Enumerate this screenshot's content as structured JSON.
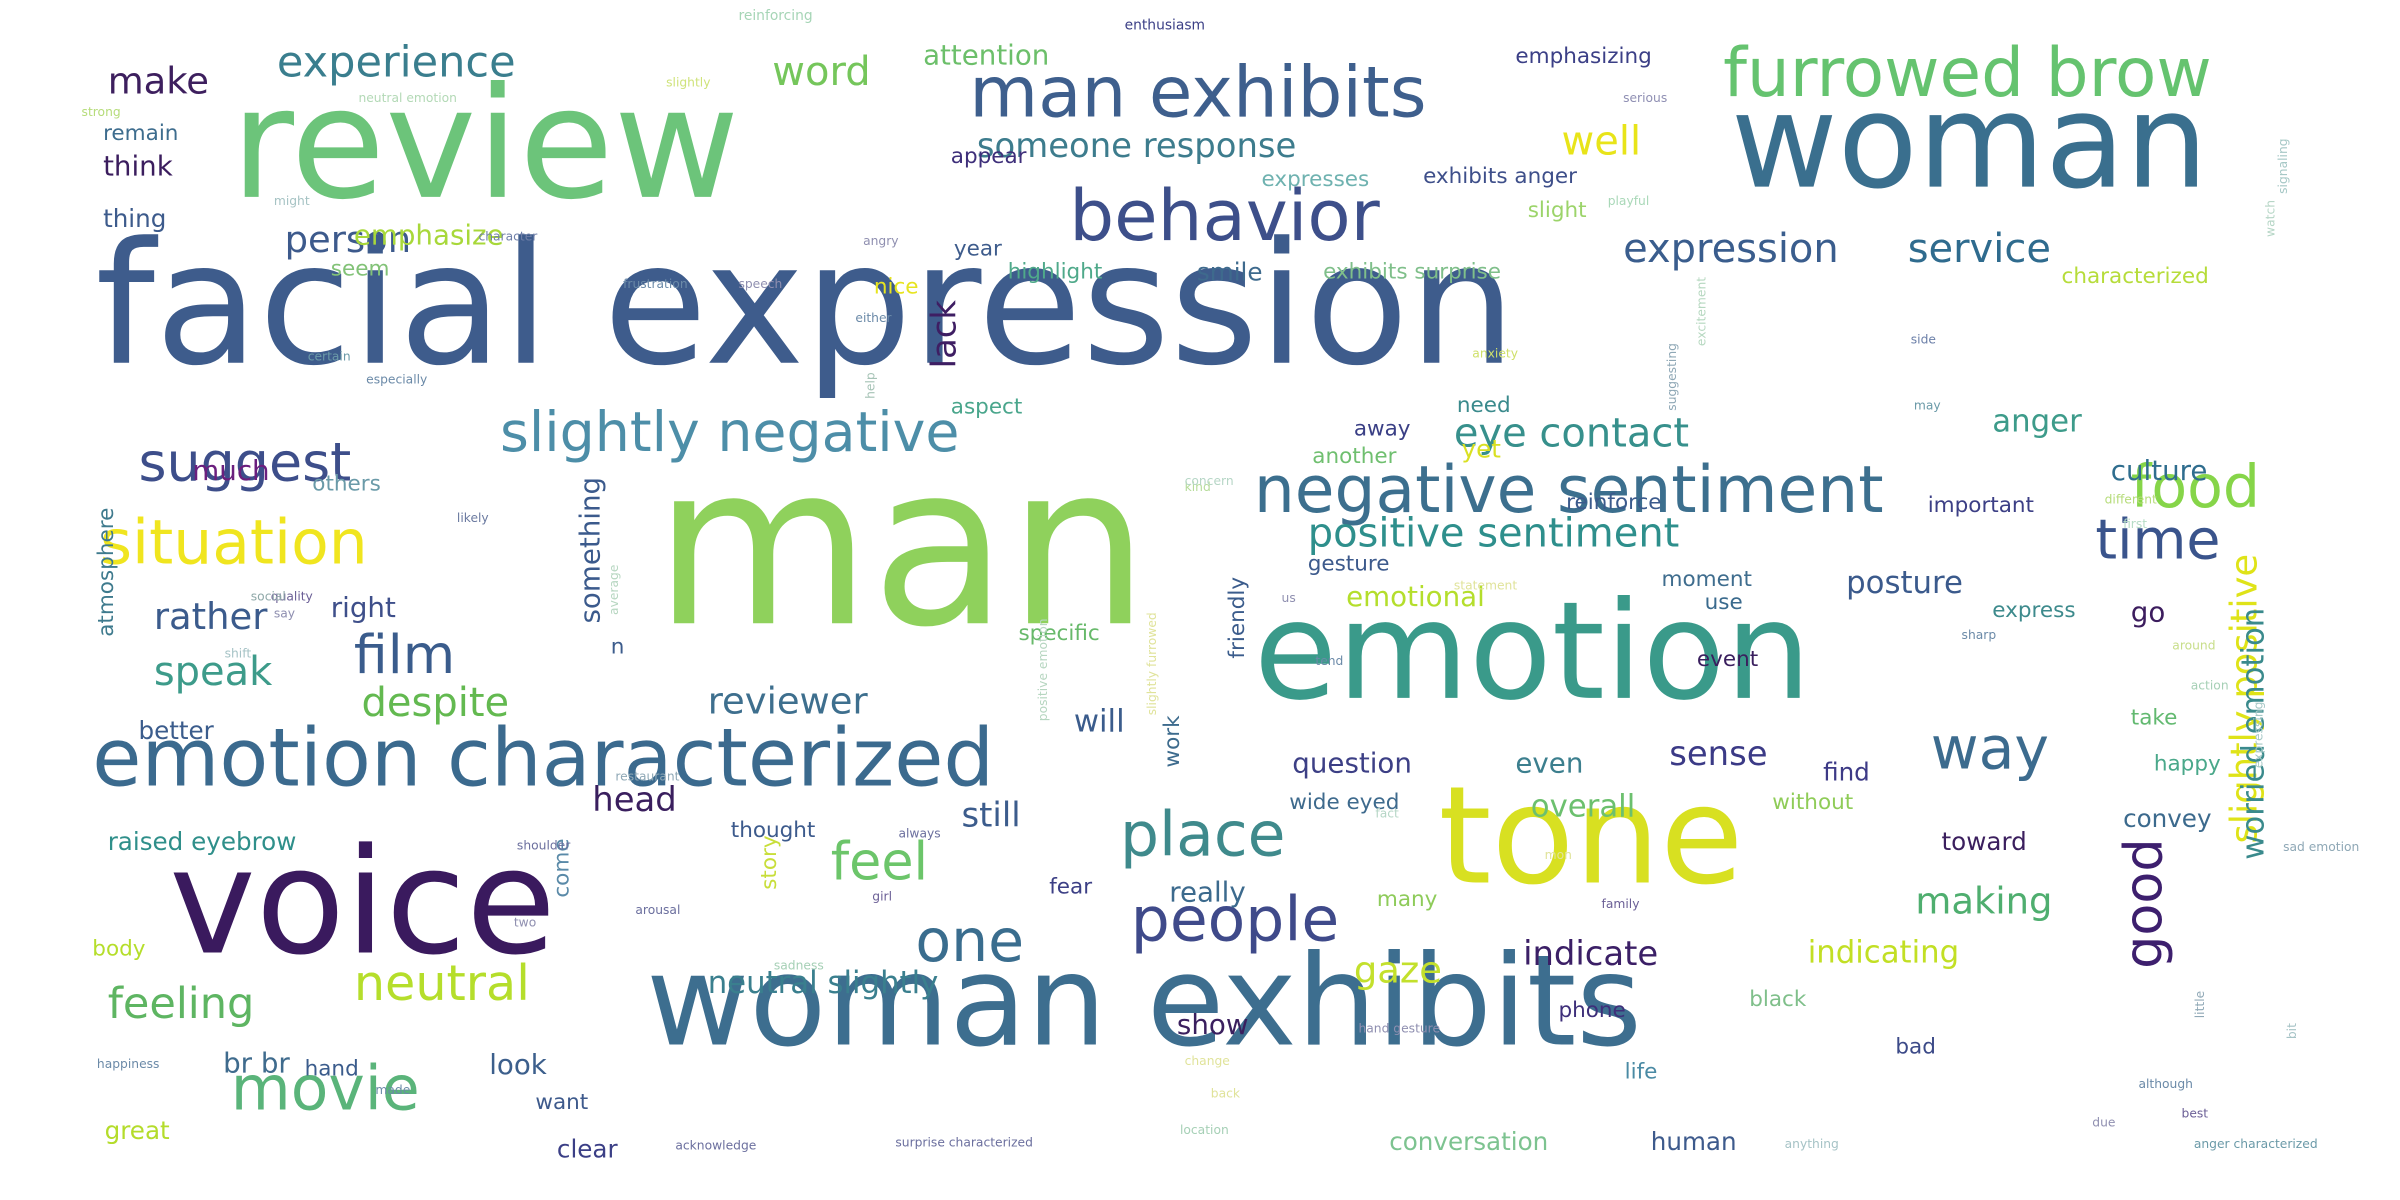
{
  "words": [
    {
      "text": "man",
      "color": "#8fd15c",
      "orientation": "horizontal"
    },
    {
      "text": "facial expression",
      "color": "#3e5c8c",
      "orientation": "horizontal"
    },
    {
      "text": "review",
      "color": "#6cc47a",
      "orientation": "horizontal"
    },
    {
      "text": "woman",
      "color": "#3a6f8e",
      "orientation": "horizontal"
    },
    {
      "text": "voice",
      "color": "#3a1a5e",
      "orientation": "horizontal"
    },
    {
      "text": "emotion",
      "color": "#3a9a8a",
      "orientation": "horizontal"
    },
    {
      "text": "tone",
      "color": "#d8e021",
      "orientation": "horizontal"
    },
    {
      "text": "woman exhibits",
      "color": "#3d6e8f",
      "orientation": "horizontal"
    },
    {
      "text": "emotion characterized",
      "color": "#3b6a8e",
      "orientation": "horizontal"
    },
    {
      "text": "man exhibits",
      "color": "#3e5f8d",
      "orientation": "horizontal"
    },
    {
      "text": "behavior",
      "color": "#3d4f8a",
      "orientation": "horizontal"
    },
    {
      "text": "furrowed brow",
      "color": "#65c36f",
      "orientation": "horizontal"
    },
    {
      "text": "negative sentiment",
      "color": "#3c6f8e",
      "orientation": "horizontal"
    },
    {
      "text": "people",
      "color": "#3f4a8a",
      "orientation": "horizontal"
    },
    {
      "text": "situation",
      "color": "#f0e51f",
      "orientation": "horizontal"
    },
    {
      "text": "slightly negative",
      "color": "#4d8ea8",
      "orientation": "horizontal"
    },
    {
      "text": "food",
      "color": "#86d549",
      "orientation": "horizontal"
    },
    {
      "text": "suggest",
      "color": "#3d4e8a",
      "orientation": "horizontal"
    },
    {
      "text": "film",
      "color": "#3a5c8c",
      "orientation": "horizontal"
    },
    {
      "text": "good",
      "color": "#3d1f6e",
      "orientation": "vertical"
    },
    {
      "text": "way",
      "color": "#3c6b8e",
      "orientation": "horizontal"
    },
    {
      "text": "place",
      "color": "#3f8a8c",
      "orientation": "horizontal"
    },
    {
      "text": "movie",
      "color": "#5ab47a",
      "orientation": "horizontal"
    },
    {
      "text": "one",
      "color": "#3a6d8e",
      "orientation": "horizontal"
    },
    {
      "text": "feel",
      "color": "#6cc56a",
      "orientation": "horizontal"
    },
    {
      "text": "neutral",
      "color": "#b5de2b",
      "orientation": "horizontal"
    },
    {
      "text": "time",
      "color": "#3a548c",
      "orientation": "horizontal"
    },
    {
      "text": "positive sentiment",
      "color": "#2e8f8c",
      "orientation": "horizontal"
    },
    {
      "text": "expression",
      "color": "#3a5d8d",
      "orientation": "horizontal"
    },
    {
      "text": "service",
      "color": "#2f6b8e",
      "orientation": "horizontal"
    },
    {
      "text": "experience",
      "color": "#3a7e8e",
      "orientation": "horizontal"
    },
    {
      "text": "someone response",
      "color": "#3d7c8d",
      "orientation": "horizontal"
    },
    {
      "text": "eye contact",
      "color": "#37908c",
      "orientation": "horizontal"
    },
    {
      "text": "slightly positive",
      "color": "#dfe318",
      "orientation": "vertical"
    },
    {
      "text": "feeling",
      "color": "#5eb562",
      "orientation": "horizontal"
    },
    {
      "text": "making",
      "color": "#4fae6f",
      "orientation": "horizontal"
    },
    {
      "text": "speak",
      "color": "#3d9b8a",
      "orientation": "horizontal"
    },
    {
      "text": "despite",
      "color": "#63b950",
      "orientation": "horizontal"
    },
    {
      "text": "reviewer",
      "color": "#3e6f8e",
      "orientation": "horizontal"
    },
    {
      "text": "sense",
      "color": "#3b3a86",
      "orientation": "horizontal"
    },
    {
      "text": "person",
      "color": "#3d5a8c",
      "orientation": "horizontal"
    },
    {
      "text": "word",
      "color": "#75c65b",
      "orientation": "horizontal"
    },
    {
      "text": "make",
      "color": "#3d1f5e",
      "orientation": "horizontal"
    },
    {
      "text": "rather",
      "color": "#3b5b8c",
      "orientation": "horizontal"
    },
    {
      "text": "indicate",
      "color": "#3b1f66",
      "orientation": "horizontal"
    },
    {
      "text": "gaze",
      "color": "#c3e02c",
      "orientation": "horizontal"
    },
    {
      "text": "well",
      "color": "#e8e419",
      "orientation": "horizontal"
    },
    {
      "text": "lack",
      "color": "#3e1e63",
      "orientation": "vertical"
    },
    {
      "text": "still",
      "color": "#3c5c8c",
      "orientation": "horizontal"
    },
    {
      "text": "head",
      "color": "#3a1f5e",
      "orientation": "horizontal"
    },
    {
      "text": "neutral slightly",
      "color": "#3a7f8e",
      "orientation": "horizontal"
    },
    {
      "text": "indicating",
      "color": "#c2df24",
      "orientation": "horizontal"
    },
    {
      "text": "worried emotion",
      "color": "#3a8a8c",
      "orientation": "vertical"
    },
    {
      "text": "posture",
      "color": "#3b5a8c",
      "orientation": "horizontal"
    },
    {
      "text": "emotional",
      "color": "#b4de2c",
      "orientation": "horizontal"
    },
    {
      "text": "anger",
      "color": "#3d9b8a",
      "orientation": "horizontal"
    },
    {
      "text": "culture",
      "color": "#2f6d8e",
      "orientation": "horizontal"
    },
    {
      "text": "attention",
      "color": "#6cbf6a",
      "orientation": "horizontal"
    },
    {
      "text": "emphasizing",
      "color": "#3b3f86",
      "orientation": "horizontal"
    },
    {
      "text": "think",
      "color": "#3b1d5e",
      "orientation": "horizontal"
    },
    {
      "text": "thing",
      "color": "#3d5b8c",
      "orientation": "horizontal"
    },
    {
      "text": "remain",
      "color": "#3e6d8e",
      "orientation": "horizontal"
    },
    {
      "text": "appear",
      "color": "#3e2f7a",
      "orientation": "horizontal"
    },
    {
      "text": "expresses",
      "color": "#6fb2b0",
      "orientation": "horizontal"
    },
    {
      "text": "exhibits anger",
      "color": "#3e4f8a",
      "orientation": "horizontal"
    },
    {
      "text": "slight",
      "color": "#9cd46a",
      "orientation": "horizontal"
    },
    {
      "text": "emphasize",
      "color": "#a8d83a",
      "orientation": "horizontal"
    },
    {
      "text": "year",
      "color": "#3e5c8c",
      "orientation": "horizontal"
    },
    {
      "text": "smile",
      "color": "#3e6a8d",
      "orientation": "horizontal"
    },
    {
      "text": "highlight",
      "color": "#4fa98a",
      "orientation": "horizontal"
    },
    {
      "text": "exhibits surprise",
      "color": "#7fbf8a",
      "orientation": "horizontal"
    },
    {
      "text": "characterized",
      "color": "#b6dc3a",
      "orientation": "horizontal"
    },
    {
      "text": "nice",
      "color": "#e7e41f",
      "orientation": "horizontal"
    },
    {
      "text": "seem",
      "color": "#82c277",
      "orientation": "horizontal"
    },
    {
      "text": "much",
      "color": "#6b1f7e",
      "orientation": "horizontal"
    },
    {
      "text": "aspect",
      "color": "#4aa68c",
      "orientation": "horizontal"
    },
    {
      "text": "need",
      "color": "#3a8a8c",
      "orientation": "horizontal"
    },
    {
      "text": "yet",
      "color": "#d9e022",
      "orientation": "horizontal"
    },
    {
      "text": "away",
      "color": "#3a3f85",
      "orientation": "horizontal"
    },
    {
      "text": "another",
      "color": "#6fbf6f",
      "orientation": "horizontal"
    },
    {
      "text": "reinforce",
      "color": "#3b5a8c",
      "orientation": "horizontal"
    },
    {
      "text": "important",
      "color": "#3c3f85",
      "orientation": "horizontal"
    },
    {
      "text": "right",
      "color": "#3e4f8a",
      "orientation": "horizontal"
    },
    {
      "text": "something",
      "color": "#3b5a8c",
      "orientation": "vertical"
    },
    {
      "text": "better",
      "color": "#3b5c8c",
      "orientation": "horizontal"
    },
    {
      "text": "will",
      "color": "#3b5c8c",
      "orientation": "horizontal"
    },
    {
      "text": "question",
      "color": "#3c3f85",
      "orientation": "horizontal"
    },
    {
      "text": "even",
      "color": "#3c7f8e",
      "orientation": "horizontal"
    },
    {
      "text": "overall",
      "color": "#6cc06e",
      "orientation": "horizontal"
    },
    {
      "text": "find",
      "color": "#3d3a86",
      "orientation": "horizontal"
    },
    {
      "text": "event",
      "color": "#3a1f5e",
      "orientation": "horizontal"
    },
    {
      "text": "moment",
      "color": "#3f6d8e",
      "orientation": "horizontal"
    },
    {
      "text": "use",
      "color": "#3a6a8d",
      "orientation": "horizontal"
    },
    {
      "text": "express",
      "color": "#3d8a8c",
      "orientation": "horizontal"
    },
    {
      "text": "go",
      "color": "#3c1d5e",
      "orientation": "horizontal"
    },
    {
      "text": "take",
      "color": "#62b970",
      "orientation": "horizontal"
    },
    {
      "text": "happy",
      "color": "#4aa88a",
      "orientation": "horizontal"
    },
    {
      "text": "convey",
      "color": "#3c6a8d",
      "orientation": "horizontal"
    },
    {
      "text": "toward",
      "color": "#3b1f5e",
      "orientation": "horizontal"
    },
    {
      "text": "without",
      "color": "#8fcc58",
      "orientation": "horizontal"
    },
    {
      "text": "wide eyed",
      "color": "#3e6a8d",
      "orientation": "horizontal"
    },
    {
      "text": "raised eyebrow",
      "color": "#2f8f8a",
      "orientation": "horizontal"
    },
    {
      "text": "thought",
      "color": "#3c5a8c",
      "orientation": "horizontal"
    },
    {
      "text": "br br",
      "color": "#3f6b8d",
      "orientation": "horizontal"
    },
    {
      "text": "hand",
      "color": "#3b5c8c",
      "orientation": "horizontal"
    },
    {
      "text": "look",
      "color": "#3c5f8c",
      "orientation": "horizontal"
    },
    {
      "text": "want",
      "color": "#3e5a8c",
      "orientation": "horizontal"
    },
    {
      "text": "great",
      "color": "#b4dc2b",
      "orientation": "horizontal"
    },
    {
      "text": "clear",
      "color": "#3b3f86",
      "orientation": "horizontal"
    },
    {
      "text": "really",
      "color": "#3c6a8d",
      "orientation": "horizontal"
    },
    {
      "text": "fear",
      "color": "#3c3f85",
      "orientation": "horizontal"
    },
    {
      "text": "many",
      "color": "#8ecb5a",
      "orientation": "horizontal"
    },
    {
      "text": "show",
      "color": "#3a1f5e",
      "orientation": "horizontal"
    },
    {
      "text": "conversation",
      "color": "#7dc390",
      "orientation": "horizontal"
    },
    {
      "text": "human",
      "color": "#3d5a8c",
      "orientation": "horizontal"
    },
    {
      "text": "phone",
      "color": "#3e2f7a",
      "orientation": "horizontal"
    },
    {
      "text": "black",
      "color": "#7fbf8a",
      "orientation": "horizontal"
    },
    {
      "text": "bad",
      "color": "#3c4a88",
      "orientation": "horizontal"
    },
    {
      "text": "life",
      "color": "#4a8aa4",
      "orientation": "horizontal"
    },
    {
      "text": "specific",
      "color": "#67b96a",
      "orientation": "horizontal"
    },
    {
      "text": "gesture",
      "color": "#3d5a8c",
      "orientation": "horizontal"
    },
    {
      "text": "friendly",
      "color": "#3b5c8c",
      "orientation": "vertical"
    },
    {
      "text": "work",
      "color": "#3d6b8d",
      "orientation": "vertical"
    },
    {
      "text": "story",
      "color": "#c8de3a",
      "orientation": "vertical"
    },
    {
      "text": "come",
      "color": "#5a8aa8",
      "orientation": "vertical"
    },
    {
      "text": "body",
      "color": "#b5de2b",
      "orientation": "horizontal"
    },
    {
      "text": "atmosphere",
      "color": "#3e7a8d",
      "orientation": "vertical"
    },
    {
      "text": "others",
      "color": "#6a9aa8",
      "orientation": "horizontal"
    },
    {
      "text": "n",
      "color": "#3c5c8c",
      "orientation": "horizontal"
    },
    {
      "text": "enthusiasm",
      "color": "#3b3f86",
      "orientation": "horizontal"
    },
    {
      "text": "reinforcing",
      "color": "#a6d5b6",
      "orientation": "horizontal"
    },
    {
      "text": "slightly",
      "color": "#cfe37a",
      "orientation": "horizontal"
    },
    {
      "text": "strong",
      "color": "#b6dc7a",
      "orientation": "horizontal"
    },
    {
      "text": "neutral emotion",
      "color": "#b3d9b6",
      "orientation": "horizontal"
    },
    {
      "text": "serious",
      "color": "#8f8fb3",
      "orientation": "horizontal"
    },
    {
      "text": "signaling",
      "color": "#a6c8c6",
      "orientation": "vertical"
    },
    {
      "text": "might",
      "color": "#a6c3c4",
      "orientation": "horizontal"
    },
    {
      "text": "playful",
      "color": "#a9d8b8",
      "orientation": "horizontal"
    },
    {
      "text": "watch",
      "color": "#b6d6c6",
      "orientation": "vertical"
    },
    {
      "text": "character",
      "color": "#6f7fa8",
      "orientation": "horizontal"
    },
    {
      "text": "angry",
      "color": "#8f8fb0",
      "orientation": "horizontal"
    },
    {
      "text": "frustration",
      "color": "#6b8aa8",
      "orientation": "horizontal"
    },
    {
      "text": "speech",
      "color": "#8f8fb0",
      "orientation": "horizontal"
    },
    {
      "text": "either",
      "color": "#6b8aa8",
      "orientation": "horizontal"
    },
    {
      "text": "certain",
      "color": "#6b9aa8",
      "orientation": "horizontal"
    },
    {
      "text": "especially",
      "color": "#6b8aa8",
      "orientation": "horizontal"
    },
    {
      "text": "help",
      "color": "#a6c3b6",
      "orientation": "vertical"
    },
    {
      "text": "anxiety",
      "color": "#cfe06a",
      "orientation": "horizontal"
    },
    {
      "text": "suggesting",
      "color": "#8fa8b6",
      "orientation": "vertical"
    },
    {
      "text": "excitement",
      "color": "#b6d8c0",
      "orientation": "vertical"
    },
    {
      "text": "side",
      "color": "#6b7fa8",
      "orientation": "horizontal"
    },
    {
      "text": "may",
      "color": "#6b9aa8",
      "orientation": "horizontal"
    },
    {
      "text": "likely",
      "color": "#6b7aa0",
      "orientation": "horizontal"
    },
    {
      "text": "kind",
      "color": "#b6dc9a",
      "orientation": "horizontal"
    },
    {
      "text": "concern",
      "color": "#b6d6c6",
      "orientation": "horizontal"
    },
    {
      "text": "first",
      "color": "#b6dcc6",
      "orientation": "horizontal"
    },
    {
      "text": "different",
      "color": "#b6dc7a",
      "orientation": "horizontal"
    },
    {
      "text": "quality",
      "color": "#6b5f96",
      "orientation": "horizontal"
    },
    {
      "text": "social",
      "color": "#8fa8a8",
      "orientation": "horizontal"
    },
    {
      "text": "shift",
      "color": "#a6c3c6",
      "orientation": "horizontal"
    },
    {
      "text": "say",
      "color": "#8f8fb0",
      "orientation": "horizontal"
    },
    {
      "text": "average",
      "color": "#b6d6c0",
      "orientation": "vertical"
    },
    {
      "text": "statement",
      "color": "#e0e39a",
      "orientation": "horizontal"
    },
    {
      "text": "sharp",
      "color": "#6b8aa8",
      "orientation": "horizontal"
    },
    {
      "text": "around",
      "color": "#c8de8a",
      "orientation": "horizontal"
    },
    {
      "text": "action",
      "color": "#a6d0b6",
      "orientation": "horizontal"
    },
    {
      "text": "expressing",
      "color": "#a6c8c6",
      "orientation": "vertical"
    },
    {
      "text": "restaurant",
      "color": "#8fa8b6",
      "orientation": "horizontal"
    },
    {
      "text": "tend",
      "color": "#6b8aa8",
      "orientation": "horizontal"
    },
    {
      "text": "slightly furrowed",
      "color": "#e0e39a",
      "orientation": "vertical"
    },
    {
      "text": "positive emotion",
      "color": "#b6d6c0",
      "orientation": "vertical"
    },
    {
      "text": "shoulder",
      "color": "#6b6f9e",
      "orientation": "horizontal"
    },
    {
      "text": "always",
      "color": "#6b6f9e",
      "orientation": "horizontal"
    },
    {
      "text": "fact",
      "color": "#b6d6c6",
      "orientation": "horizontal"
    },
    {
      "text": "sad emotion",
      "color": "#8fa8b6",
      "orientation": "horizontal"
    },
    {
      "text": "girl",
      "color": "#6b5f96",
      "orientation": "horizontal"
    },
    {
      "text": "family",
      "color": "#6b5f96",
      "orientation": "horizontal"
    },
    {
      "text": "mon",
      "color": "#e0e39a",
      "orientation": "horizontal"
    },
    {
      "text": "little",
      "color": "#8fa8b6",
      "orientation": "vertical"
    },
    {
      "text": "arousal",
      "color": "#6b6f9e",
      "orientation": "horizontal"
    },
    {
      "text": "two",
      "color": "#8f8fb0",
      "orientation": "horizontal"
    },
    {
      "text": "sadness",
      "color": "#a6d0b6",
      "orientation": "horizontal"
    },
    {
      "text": "hand gesture",
      "color": "#8f8fb0",
      "orientation": "horizontal"
    },
    {
      "text": "bit",
      "color": "#a6c3c6",
      "orientation": "vertical"
    },
    {
      "text": "happiness",
      "color": "#6b8aa8",
      "orientation": "horizontal"
    },
    {
      "text": "change",
      "color": "#e0e39a",
      "orientation": "horizontal"
    },
    {
      "text": "made",
      "color": "#6b8aa8",
      "orientation": "horizontal"
    },
    {
      "text": "back",
      "color": "#e0e39a",
      "orientation": "horizontal"
    },
    {
      "text": "location",
      "color": "#a6d0b6",
      "orientation": "horizontal"
    },
    {
      "text": "although",
      "color": "#6b8aa8",
      "orientation": "horizontal"
    },
    {
      "text": "due",
      "color": "#8f8fb0",
      "orientation": "horizontal"
    },
    {
      "text": "best",
      "color": "#6b5f96",
      "orientation": "horizontal"
    },
    {
      "text": "acknowledge",
      "color": "#6b6f9e",
      "orientation": "horizontal"
    },
    {
      "text": "surprise characterized",
      "color": "#6b6f9e",
      "orientation": "horizontal"
    },
    {
      "text": "anything",
      "color": "#a6c3c6",
      "orientation": "horizontal"
    },
    {
      "text": "anger characterized",
      "color": "#6b9aa8",
      "orientation": "horizontal"
    },
    {
      "text": "us",
      "color": "#8f8fb0",
      "orientation": "horizontal"
    }
  ]
}
